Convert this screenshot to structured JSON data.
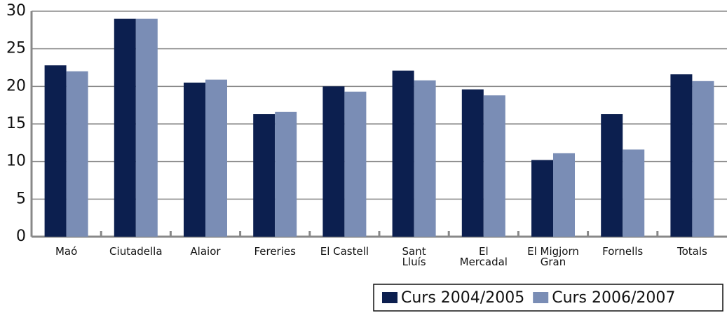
{
  "chart_data": {
    "type": "bar",
    "categories": [
      "Maó",
      "Ciutadella",
      "Alaior",
      "Fereries",
      "El Castell",
      "Sant\nLluís",
      "El\nMercadal",
      "El Migjorn\nGran",
      "Fornells",
      "Totals"
    ],
    "series": [
      {
        "name": "Curs 2004/2005",
        "color": "#0c1f4f",
        "values": [
          22.8,
          29,
          20.5,
          16.3,
          20.0,
          22.1,
          19.6,
          10.2,
          16.3,
          21.6
        ]
      },
      {
        "name": "Curs 2006/2007",
        "color": "#7a8db5",
        "values": [
          22.0,
          29,
          20.9,
          16.6,
          19.3,
          20.8,
          18.8,
          11.1,
          11.6,
          20.7
        ]
      }
    ],
    "ylim": [
      0,
      30
    ],
    "yticks": [
      0,
      5,
      10,
      15,
      20,
      25,
      30
    ],
    "grid": true,
    "legend": "bottom-right"
  }
}
